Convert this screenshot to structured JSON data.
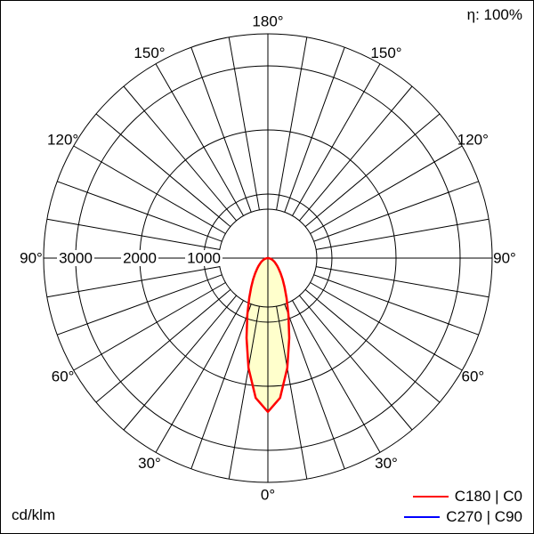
{
  "header": {
    "efficiency": "η: 100%"
  },
  "footer": {
    "unit": "cd/klm"
  },
  "legend": {
    "items": [
      {
        "label": "C180 | C0",
        "color": "#ff0000"
      },
      {
        "label": "C270 | C90",
        "color": "#0000ff"
      }
    ]
  },
  "chart_data": {
    "type": "polar",
    "unit": "cd/klm",
    "angle_zero": "bottom",
    "angle_step_deg": 10,
    "angle_label_step_deg": 30,
    "angle_labels": [
      "0°",
      "30°",
      "60°",
      "90°",
      "120°",
      "150°",
      "180°"
    ],
    "radial_ticks": [
      1000,
      2000,
      3000
    ],
    "radial_max": 3500,
    "grid_color": "#000000",
    "series": [
      {
        "name": "C180 | C0",
        "stroke_color": "#ff0000",
        "fill_color": "#ffffcc",
        "symmetric": true,
        "gamma_deg": [
          0,
          5,
          10,
          15,
          20,
          25,
          30,
          35,
          40,
          45,
          50,
          55,
          60,
          65,
          70,
          75,
          80,
          85,
          90
        ],
        "values": [
          2400,
          2190,
          1740,
          1290,
          940,
          690,
          520,
          400,
          310,
          240,
          190,
          150,
          120,
          90,
          70,
          50,
          30,
          15,
          0
        ]
      }
    ]
  }
}
